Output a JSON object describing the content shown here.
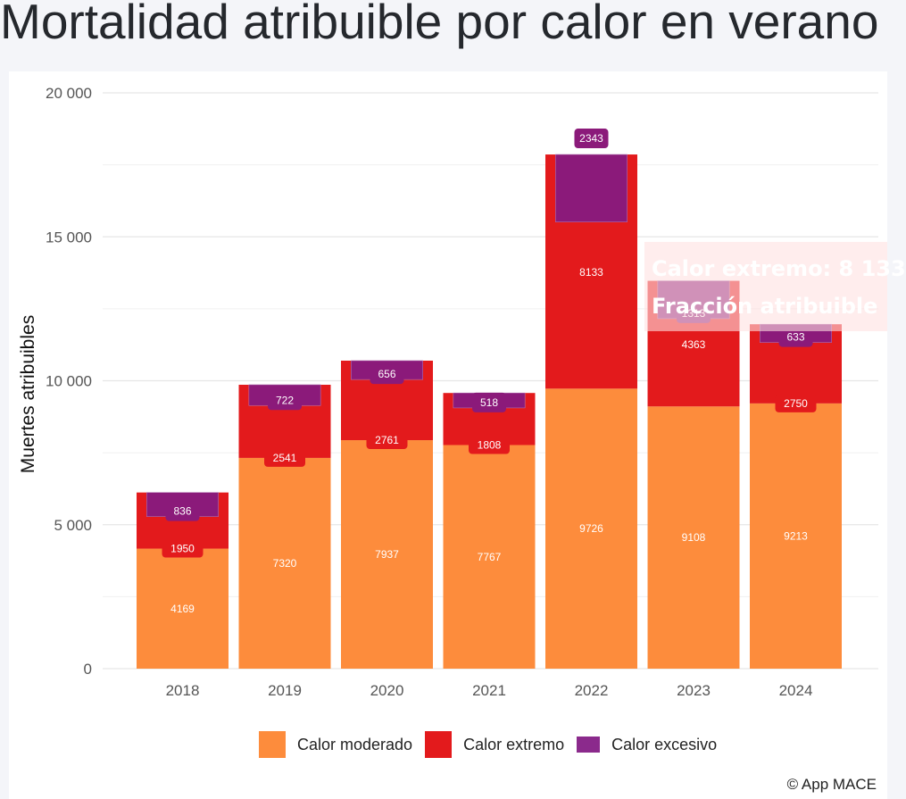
{
  "title": "Mortalidad atribuible por calor en verano",
  "credit": "© App MACE",
  "tooltip": {
    "line1": "Calor extremo: 8 133",
    "line2": "Fracción atribuible"
  },
  "colors": {
    "moderado": "#fd8c3c",
    "extremo": "#e31a1c",
    "excesivo": "#8b1a7a",
    "legend_excesivo": "#8b2a8c"
  },
  "chart_data": {
    "type": "bar",
    "stacked": true,
    "categories": [
      "2018",
      "2019",
      "2020",
      "2021",
      "2022",
      "2023",
      "2024"
    ],
    "series": [
      {
        "name": "Calor moderado",
        "values": [
          4169,
          7320,
          7937,
          7767,
          9726,
          9108,
          9213
        ]
      },
      {
        "name": "Calor extremo",
        "values": [
          1950,
          2541,
          2761,
          1808,
          8133,
          4363,
          2750
        ]
      },
      {
        "name": "Calor excesivo",
        "values": [
          836,
          722,
          656,
          518,
          2343,
          1313,
          633
        ]
      }
    ],
    "ylabel": "Muertes atribuibles",
    "ylim": [
      0,
      20000
    ],
    "yticks": [
      0,
      5000,
      10000,
      15000,
      20000
    ],
    "ytick_labels": [
      "0",
      "5 000",
      "10 000",
      "15 000",
      "20 000"
    ],
    "grid": true,
    "legend_position": "bottom"
  }
}
